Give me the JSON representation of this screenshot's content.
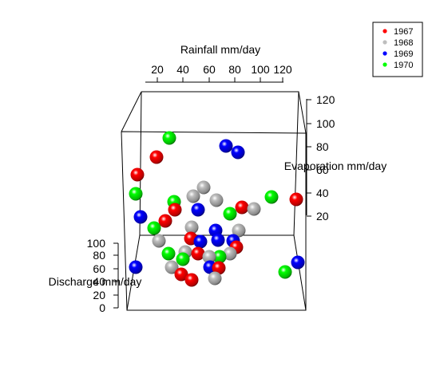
{
  "chart_data": {
    "type": "scatter3d",
    "axes": {
      "x": {
        "label": "Rainfall mm/day",
        "ticks": [
          "20",
          "40",
          "60",
          "80",
          "100",
          "120"
        ]
      },
      "y": {
        "label": "Evaporation mm/day",
        "ticks": [
          "20",
          "40",
          "60",
          "80",
          "100",
          "120"
        ]
      },
      "z": {
        "label": "Discharge mm/day",
        "ticks": [
          "0",
          "20",
          "40",
          "60",
          "80",
          "100"
        ]
      }
    },
    "legend": {
      "position": "top-right"
    },
    "series": [
      {
        "name": "1967",
        "color": "#ff0000"
      },
      {
        "name": "1968",
        "color": "#bebebe"
      },
      {
        "name": "1969",
        "color": "#0000ff"
      },
      {
        "name": "1970",
        "color": "#00ff00"
      }
    ]
  }
}
